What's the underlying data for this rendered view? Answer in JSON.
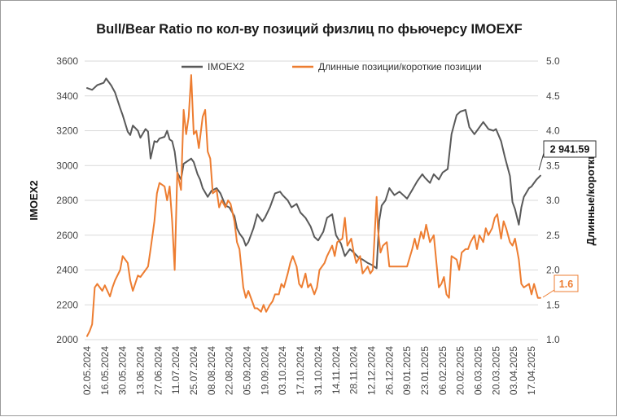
{
  "chart_data": {
    "type": "line",
    "title": "Bull/Bear Ratio по кол-ву позиций физлиц по фьючерсу IMOEXF",
    "ylabel_left": "IMOEX2",
    "ylabel_right": "Длинные/короткие",
    "ylim_left": [
      2000,
      3600
    ],
    "ylim_right": [
      1.0,
      5.0
    ],
    "yticks_left": [
      "2000",
      "2200",
      "2400",
      "2600",
      "2800",
      "3000",
      "3200",
      "3400",
      "3600"
    ],
    "yticks_right": [
      "1.0",
      "1.5",
      "2.0",
      "2.5",
      "3.0",
      "3.5",
      "4.0",
      "4.5",
      "5.0"
    ],
    "x_tick_labels": [
      "02.05.2024",
      "16.05.2024",
      "30.05.2024",
      "13.06.2024",
      "27.06.2024",
      "11.07.2024",
      "25.07.2024",
      "08.08.2024",
      "22.08.2024",
      "05.09.2024",
      "19.09.2024",
      "03.10.2024",
      "17.10.2024",
      "31.10.2024",
      "14.11.2024",
      "28.11.2024",
      "12.12.2024",
      "26.12.2024",
      "09.01.2025",
      "23.01.2025",
      "06.02.2025",
      "20.02.2025",
      "06.03.2025",
      "20.03.2025",
      "03.04.2025",
      "17.04.2025"
    ],
    "grid": true,
    "legend_position": "top",
    "series": [
      {
        "name": "IMOEX2",
        "axis": "left",
        "color": "#595959",
        "last_value_label": "2 941.59",
        "points": [
          [
            "02.05.2024",
            3445
          ],
          [
            "06.05.2024",
            3435
          ],
          [
            "10.05.2024",
            3462
          ],
          [
            "15.05.2024",
            3475
          ],
          [
            "17.05.2024",
            3500
          ],
          [
            "21.05.2024",
            3460
          ],
          [
            "24.05.2024",
            3420
          ],
          [
            "28.05.2024",
            3330
          ],
          [
            "30.05.2024",
            3290
          ],
          [
            "03.06.2024",
            3195
          ],
          [
            "05.06.2024",
            3175
          ],
          [
            "07.06.2024",
            3230
          ],
          [
            "11.06.2024",
            3200
          ],
          [
            "13.06.2024",
            3160
          ],
          [
            "17.06.2024",
            3210
          ],
          [
            "19.06.2024",
            3195
          ],
          [
            "21.06.2024",
            3040
          ],
          [
            "24.06.2024",
            3140
          ],
          [
            "26.06.2024",
            3135
          ],
          [
            "28.06.2024",
            3155
          ],
          [
            "02.07.2024",
            3165
          ],
          [
            "04.07.2024",
            3200
          ],
          [
            "06.07.2024",
            3150
          ],
          [
            "08.07.2024",
            3140
          ],
          [
            "10.07.2024",
            3080
          ],
          [
            "12.07.2024",
            2960
          ],
          [
            "15.07.2024",
            2920
          ],
          [
            "17.07.2024",
            3010
          ],
          [
            "19.07.2024",
            3020
          ],
          [
            "23.07.2024",
            3040
          ],
          [
            "25.07.2024",
            3020
          ],
          [
            "28.07.2024",
            2950
          ],
          [
            "30.07.2024",
            2920
          ],
          [
            "01.08.2024",
            2870
          ],
          [
            "05.08.2024",
            2820
          ],
          [
            "08.08.2024",
            2855
          ],
          [
            "12.08.2024",
            2870
          ],
          [
            "15.08.2024",
            2840
          ],
          [
            "19.08.2024",
            2770
          ],
          [
            "22.08.2024",
            2760
          ],
          [
            "26.08.2024",
            2710
          ],
          [
            "28.08.2024",
            2640
          ],
          [
            "30.08.2024",
            2610
          ],
          [
            "02.09.2024",
            2580
          ],
          [
            "04.09.2024",
            2540
          ],
          [
            "06.09.2024",
            2560
          ],
          [
            "10.09.2024",
            2640
          ],
          [
            "13.09.2024",
            2720
          ],
          [
            "17.09.2024",
            2680
          ],
          [
            "19.09.2024",
            2700
          ],
          [
            "23.09.2024",
            2760
          ],
          [
            "27.09.2024",
            2840
          ],
          [
            "01.10.2024",
            2850
          ],
          [
            "03.10.2024",
            2830
          ],
          [
            "07.10.2024",
            2800
          ],
          [
            "10.10.2024",
            2760
          ],
          [
            "14.10.2024",
            2780
          ],
          [
            "17.10.2024",
            2730
          ],
          [
            "21.10.2024",
            2700
          ],
          [
            "25.10.2024",
            2650
          ],
          [
            "28.10.2024",
            2590
          ],
          [
            "31.10.2024",
            2570
          ],
          [
            "04.11.2024",
            2620
          ],
          [
            "07.11.2024",
            2700
          ],
          [
            "11.11.2024",
            2720
          ],
          [
            "14.11.2024",
            2600
          ],
          [
            "18.11.2024",
            2550
          ],
          [
            "21.11.2024",
            2480
          ],
          [
            "25.11.2024",
            2520
          ],
          [
            "28.11.2024",
            2500
          ],
          [
            "02.12.2024",
            2470
          ],
          [
            "05.12.2024",
            2460
          ],
          [
            "09.12.2024",
            2440
          ],
          [
            "12.12.2024",
            2430
          ],
          [
            "16.12.2024",
            2410
          ],
          [
            "18.12.2024",
            2680
          ],
          [
            "20.12.2024",
            2770
          ],
          [
            "23.12.2024",
            2800
          ],
          [
            "26.12.2024",
            2870
          ],
          [
            "30.12.2024",
            2830
          ],
          [
            "03.01.2025",
            2850
          ],
          [
            "09.01.2025",
            2810
          ],
          [
            "13.01.2025",
            2860
          ],
          [
            "17.01.2025",
            2910
          ],
          [
            "21.01.2025",
            2950
          ],
          [
            "23.01.2025",
            2930
          ],
          [
            "27.01.2025",
            2900
          ],
          [
            "30.01.2025",
            2950
          ],
          [
            "03.02.2025",
            2920
          ],
          [
            "06.02.2025",
            2960
          ],
          [
            "10.02.2025",
            2980
          ],
          [
            "13.02.2025",
            3180
          ],
          [
            "17.02.2025",
            3290
          ],
          [
            "20.02.2025",
            3310
          ],
          [
            "24.02.2025",
            3320
          ],
          [
            "27.02.2025",
            3220
          ],
          [
            "03.03.2025",
            3180
          ],
          [
            "06.03.2025",
            3210
          ],
          [
            "10.03.2025",
            3250
          ],
          [
            "14.03.2025",
            3210
          ],
          [
            "18.03.2025",
            3200
          ],
          [
            "20.03.2025",
            3210
          ],
          [
            "24.03.2025",
            3140
          ],
          [
            "27.03.2025",
            3050
          ],
          [
            "31.03.2025",
            2940
          ],
          [
            "02.04.2025",
            2790
          ],
          [
            "04.04.2025",
            2750
          ],
          [
            "07.04.2025",
            2660
          ],
          [
            "09.04.2025",
            2760
          ],
          [
            "11.04.2025",
            2820
          ],
          [
            "15.04.2025",
            2870
          ],
          [
            "17.04.2025",
            2880
          ],
          [
            "21.04.2025",
            2920
          ],
          [
            "24.04.2025",
            2941.59
          ]
        ]
      },
      {
        "name": "Длинные позиции/короткие позиции",
        "axis": "right",
        "color": "#ed7d31",
        "last_value_label": "1.6",
        "points": [
          [
            "02.05.2024",
            1.05
          ],
          [
            "04.05.2024",
            1.12
          ],
          [
            "06.05.2024",
            1.22
          ],
          [
            "08.05.2024",
            1.75
          ],
          [
            "10.05.2024",
            1.8
          ],
          [
            "14.05.2024",
            1.7
          ],
          [
            "16.05.2024",
            1.78
          ],
          [
            "20.05.2024",
            1.62
          ],
          [
            "22.05.2024",
            1.75
          ],
          [
            "24.05.2024",
            1.85
          ],
          [
            "28.05.2024",
            2.0
          ],
          [
            "30.05.2024",
            2.2
          ],
          [
            "03.06.2024",
            2.1
          ],
          [
            "05.06.2024",
            1.85
          ],
          [
            "07.06.2024",
            1.7
          ],
          [
            "11.06.2024",
            1.92
          ],
          [
            "13.06.2024",
            1.9
          ],
          [
            "17.06.2024",
            2.0
          ],
          [
            "19.06.2024",
            2.05
          ],
          [
            "21.06.2024",
            2.3
          ],
          [
            "24.06.2024",
            2.7
          ],
          [
            "26.06.2024",
            3.1
          ],
          [
            "28.06.2024",
            3.25
          ],
          [
            "02.07.2024",
            3.2
          ],
          [
            "04.07.2024",
            3.0
          ],
          [
            "06.07.2024",
            3.2
          ],
          [
            "08.07.2024",
            2.7
          ],
          [
            "10.07.2024",
            2.0
          ],
          [
            "12.07.2024",
            3.4
          ],
          [
            "15.07.2024",
            3.15
          ],
          [
            "17.07.2024",
            4.3
          ],
          [
            "19.07.2024",
            3.95
          ],
          [
            "21.07.2024",
            4.2
          ],
          [
            "23.07.2024",
            4.8
          ],
          [
            "25.07.2024",
            3.95
          ],
          [
            "27.07.2024",
            4.0
          ],
          [
            "29.07.2024",
            3.75
          ],
          [
            "01.08.2024",
            4.2
          ],
          [
            "03.08.2024",
            4.3
          ],
          [
            "05.08.2024",
            3.7
          ],
          [
            "07.08.2024",
            3.6
          ],
          [
            "09.08.2024",
            3.1
          ],
          [
            "12.08.2024",
            3.15
          ],
          [
            "14.08.2024",
            2.9
          ],
          [
            "16.08.2024",
            3.0
          ],
          [
            "19.08.2024",
            2.9
          ],
          [
            "21.08.2024",
            3.0
          ],
          [
            "23.08.2024",
            2.95
          ],
          [
            "26.08.2024",
            2.7
          ],
          [
            "28.08.2024",
            2.4
          ],
          [
            "30.08.2024",
            2.3
          ],
          [
            "02.09.2024",
            1.75
          ],
          [
            "04.09.2024",
            1.6
          ],
          [
            "06.09.2024",
            1.7
          ],
          [
            "09.09.2024",
            1.55
          ],
          [
            "11.09.2024",
            1.45
          ],
          [
            "13.09.2024",
            1.45
          ],
          [
            "16.09.2024",
            1.4
          ],
          [
            "18.09.2024",
            1.5
          ],
          [
            "20.09.2024",
            1.4
          ],
          [
            "23.09.2024",
            1.5
          ],
          [
            "25.09.2024",
            1.55
          ],
          [
            "27.09.2024",
            1.65
          ],
          [
            "30.09.2024",
            1.65
          ],
          [
            "02.10.2024",
            1.8
          ],
          [
            "04.10.2024",
            1.75
          ],
          [
            "07.10.2024",
            1.95
          ],
          [
            "09.10.2024",
            2.1
          ],
          [
            "11.10.2024",
            2.2
          ],
          [
            "14.10.2024",
            2.05
          ],
          [
            "16.10.2024",
            1.8
          ],
          [
            "18.10.2024",
            1.75
          ],
          [
            "21.10.2024",
            1.95
          ],
          [
            "23.10.2024",
            1.75
          ],
          [
            "25.10.2024",
            1.8
          ],
          [
            "28.10.2024",
            1.65
          ],
          [
            "30.10.2024",
            1.75
          ],
          [
            "01.11.2024",
            2.0
          ],
          [
            "05.11.2024",
            2.1
          ],
          [
            "07.11.2024",
            2.2
          ],
          [
            "11.11.2024",
            2.35
          ],
          [
            "13.11.2024",
            2.2
          ],
          [
            "15.11.2024",
            2.4
          ],
          [
            "19.11.2024",
            2.45
          ],
          [
            "21.11.2024",
            2.75
          ],
          [
            "23.11.2024",
            2.35
          ],
          [
            "26.11.2024",
            2.45
          ],
          [
            "28.11.2024",
            2.25
          ],
          [
            "30.11.2024",
            2.1
          ],
          [
            "03.12.2024",
            2.2
          ],
          [
            "05.12.2024",
            1.95
          ],
          [
            "09.12.2024",
            2.05
          ],
          [
            "11.12.2024",
            1.95
          ],
          [
            "13.12.2024",
            2.0
          ],
          [
            "16.12.2024",
            3.05
          ],
          [
            "17.12.2024",
            2.6
          ],
          [
            "19.12.2024",
            2.25
          ],
          [
            "21.12.2024",
            2.35
          ],
          [
            "24.12.2024",
            2.4
          ],
          [
            "26.12.2024",
            2.05
          ],
          [
            "30.12.2024",
            2.05
          ],
          [
            "09.01.2025",
            2.05
          ],
          [
            "13.01.2025",
            2.3
          ],
          [
            "15.01.2025",
            2.45
          ],
          [
            "17.01.2025",
            2.3
          ],
          [
            "20.01.2025",
            2.55
          ],
          [
            "22.01.2025",
            2.45
          ],
          [
            "24.01.2025",
            2.65
          ],
          [
            "27.01.2025",
            2.4
          ],
          [
            "30.01.2025",
            2.5
          ],
          [
            "03.02.2025",
            1.75
          ],
          [
            "05.02.2025",
            1.8
          ],
          [
            "07.02.2025",
            1.9
          ],
          [
            "09.02.2025",
            1.65
          ],
          [
            "11.02.2025",
            1.6
          ],
          [
            "13.02.2025",
            2.2
          ],
          [
            "17.02.2025",
            2.15
          ],
          [
            "19.02.2025",
            2.0
          ],
          [
            "21.02.2025",
            2.25
          ],
          [
            "24.02.2025",
            2.3
          ],
          [
            "26.02.2025",
            2.3
          ],
          [
            "28.02.2025",
            2.4
          ],
          [
            "03.03.2025",
            2.5
          ],
          [
            "05.03.2025",
            2.3
          ],
          [
            "07.03.2025",
            2.5
          ],
          [
            "10.03.2025",
            2.4
          ],
          [
            "12.03.2025",
            2.6
          ],
          [
            "14.03.2025",
            2.5
          ],
          [
            "17.03.2025",
            2.6
          ],
          [
            "19.03.2025",
            2.75
          ],
          [
            "21.03.2025",
            2.8
          ],
          [
            "24.03.2025",
            2.45
          ],
          [
            "26.03.2025",
            2.7
          ],
          [
            "28.03.2025",
            2.6
          ],
          [
            "31.03.2025",
            2.4
          ],
          [
            "02.04.2025",
            2.35
          ],
          [
            "04.04.2025",
            2.45
          ],
          [
            "07.04.2025",
            2.15
          ],
          [
            "09.04.2025",
            1.8
          ],
          [
            "11.04.2025",
            1.75
          ],
          [
            "15.04.2025",
            1.8
          ],
          [
            "17.04.2025",
            1.65
          ],
          [
            "19.04.2025",
            1.8
          ],
          [
            "22.04.2025",
            1.6
          ],
          [
            "24.04.2025",
            1.6
          ]
        ]
      }
    ]
  }
}
